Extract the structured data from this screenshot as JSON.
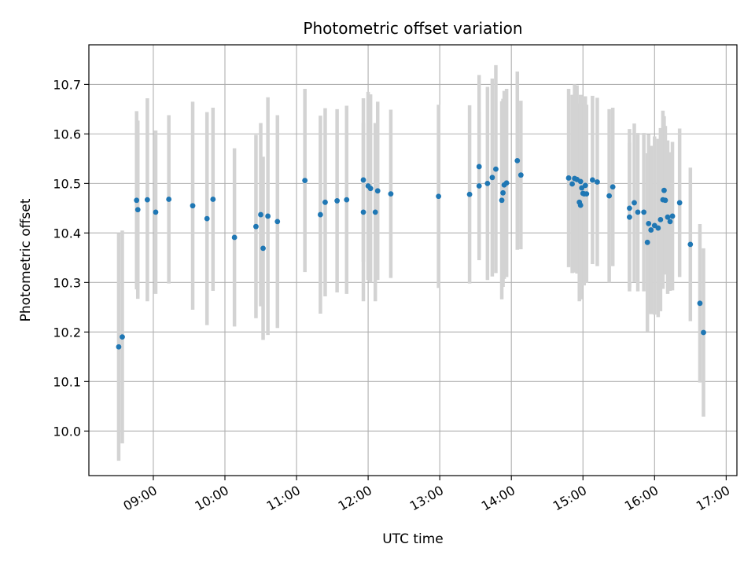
{
  "chart_data": {
    "type": "scatter",
    "title": "Photometric offset variation",
    "xlabel": "UTC time",
    "ylabel": "Photometric offset",
    "xlim": [
      "08:06",
      "17:09"
    ],
    "ylim": [
      9.91,
      10.78
    ],
    "x_ticks": [
      "09:00",
      "10:00",
      "11:00",
      "12:00",
      "13:00",
      "14:00",
      "15:00",
      "16:00",
      "17:00"
    ],
    "y_ticks": [
      10.0,
      10.1,
      10.2,
      10.3,
      10.4,
      10.5,
      10.6,
      10.7
    ],
    "grid": true,
    "colors": {
      "points": "#1f77b4",
      "errorbars": "#d3d3d3",
      "grid": "#b0b0b0"
    },
    "series": [
      {
        "x": [
          "08:31",
          "08:34",
          "08:46",
          "08:47",
          "08:55",
          "09:02",
          "09:13",
          "09:33",
          "09:45",
          "09:50",
          "10:08",
          "10:26",
          "10:30",
          "10:32",
          "10:36",
          "10:44",
          "11:07",
          "11:20",
          "11:24",
          "11:34",
          "11:42",
          "11:56",
          "11:56",
          "12:00",
          "12:02",
          "12:06",
          "12:08",
          "12:19",
          "12:59",
          "13:25",
          "13:33",
          "13:33",
          "13:40",
          "13:44",
          "13:47",
          "13:52",
          "13:53",
          "13:54",
          "13:56",
          "14:05",
          "14:08",
          "14:48",
          "14:51",
          "14:53",
          "14:55",
          "14:57",
          "14:58",
          "14:58",
          "14:59",
          "15:00",
          "15:01",
          "15:02",
          "15:03",
          "15:08",
          "15:12",
          "15:22",
          "15:25",
          "15:39",
          "15:39",
          "15:43",
          "15:46",
          "15:51",
          "15:54",
          "15:55",
          "15:57",
          "16:00",
          "16:03",
          "16:05",
          "16:07",
          "16:08",
          "16:09",
          "16:11",
          "16:13",
          "16:15",
          "16:21",
          "16:30",
          "16:38",
          "16:41"
        ],
        "y": [
          10.17,
          10.19,
          10.466,
          10.447,
          10.467,
          10.442,
          10.468,
          10.455,
          10.429,
          10.468,
          10.391,
          10.413,
          10.437,
          10.369,
          10.434,
          10.423,
          10.506,
          10.437,
          10.462,
          10.465,
          10.467,
          10.507,
          10.442,
          10.495,
          10.49,
          10.442,
          10.485,
          10.479,
          10.474,
          10.478,
          10.534,
          10.495,
          10.5,
          10.512,
          10.529,
          10.466,
          10.481,
          10.497,
          10.501,
          10.546,
          10.517,
          10.511,
          10.499,
          10.51,
          10.508,
          10.462,
          10.456,
          10.504,
          10.491,
          10.48,
          10.479,
          10.496,
          10.479,
          10.507,
          10.503,
          10.475,
          10.493,
          10.432,
          10.45,
          10.461,
          10.442,
          10.442,
          10.381,
          10.419,
          10.406,
          10.415,
          10.41,
          10.427,
          10.467,
          10.486,
          10.466,
          10.432,
          10.423,
          10.434,
          10.461,
          10.377,
          10.258,
          10.199
        ],
        "yerr": [
          0.23,
          0.215,
          0.18,
          0.18,
          0.205,
          0.165,
          0.17,
          0.21,
          0.215,
          0.185,
          0.18,
          0.185,
          0.185,
          0.185,
          0.24,
          0.215,
          0.185,
          0.2,
          0.19,
          0.185,
          0.19,
          0.165,
          0.18,
          0.19,
          0.19,
          0.18,
          0.18,
          0.17,
          0.185,
          0.18,
          0.185,
          0.15,
          0.195,
          0.2,
          0.21,
          0.2,
          0.19,
          0.19,
          0.19,
          0.18,
          0.15,
          0.18,
          0.18,
          0.19,
          0.19,
          0.2,
          0.19,
          0.175,
          0.185,
          0.18,
          0.185,
          0.18,
          0.18,
          0.17,
          0.17,
          0.175,
          0.16,
          0.15,
          0.16,
          0.16,
          0.16,
          0.16,
          0.18,
          0.18,
          0.17,
          0.18,
          0.18,
          0.185,
          0.18,
          0.15,
          0.15,
          0.155,
          0.14,
          0.15,
          0.15,
          0.155,
          0.16,
          0.17
        ]
      }
    ]
  }
}
